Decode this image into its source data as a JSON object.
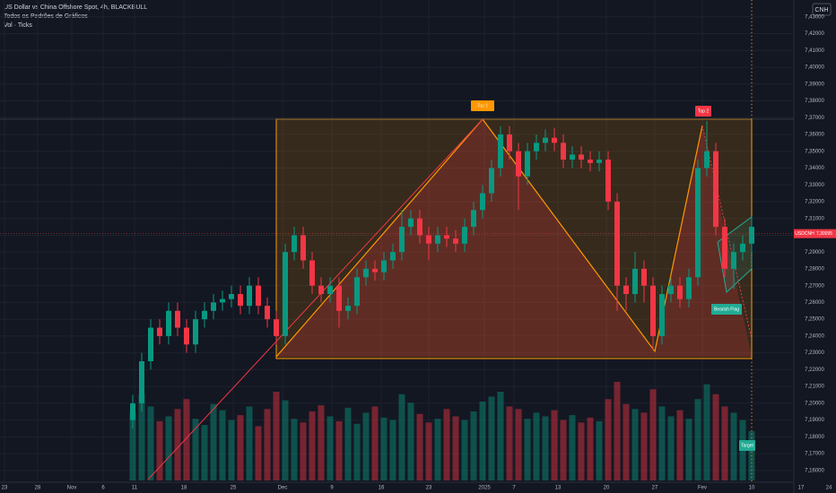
{
  "chart_data": {
    "type": "candlestick",
    "title": "US Dollar vs China Offshore Spot, 4h, BLACKBULL",
    "subtitle": "Todos os Padrões de Gráficos",
    "volume_label": "Vol · Ticks",
    "currency": "CNH",
    "symbol": "USDCNH",
    "last_price": {
      "value": 7.30095,
      "label": "7,30095"
    },
    "annotations": [
      "Top 1",
      "Top 2",
      "Bearish Flag",
      "Target"
    ],
    "ylim": [
      7.153,
      7.44
    ],
    "yticks": [
      {
        "value": 7.16,
        "label": "7,16000"
      },
      {
        "value": 7.17,
        "label": "7,17000"
      },
      {
        "value": 7.18,
        "label": "7,18000"
      },
      {
        "value": 7.19,
        "label": "7,19000"
      },
      {
        "value": 7.2,
        "label": "7,20000"
      },
      {
        "value": 7.21,
        "label": "7,21000"
      },
      {
        "value": 7.22,
        "label": "7,22000"
      },
      {
        "value": 7.23,
        "label": "7,23000"
      },
      {
        "value": 7.24,
        "label": "7,24000"
      },
      {
        "value": 7.25,
        "label": "7,25000"
      },
      {
        "value": 7.26,
        "label": "7,26000"
      },
      {
        "value": 7.27,
        "label": "7,27000"
      },
      {
        "value": 7.28,
        "label": "7,28000"
      },
      {
        "value": 7.29,
        "label": "7,29000"
      },
      {
        "value": 7.3,
        "label": "7,30000"
      },
      {
        "value": 7.31,
        "label": "7,31000"
      },
      {
        "value": 7.32,
        "label": "7,32000"
      },
      {
        "value": 7.33,
        "label": "7,33000"
      },
      {
        "value": 7.34,
        "label": "7,34000"
      },
      {
        "value": 7.35,
        "label": "7,35000"
      },
      {
        "value": 7.36,
        "label": "7,36000"
      },
      {
        "value": 7.37,
        "label": "7,37000"
      },
      {
        "value": 7.38,
        "label": "7,38000"
      },
      {
        "value": 7.39,
        "label": "7,39000"
      },
      {
        "value": 7.4,
        "label": "7,40000"
      },
      {
        "value": 7.41,
        "label": "7,41000"
      },
      {
        "value": 7.42,
        "label": "7,42000"
      },
      {
        "value": 7.43,
        "label": "7,43000"
      }
    ],
    "x_labels": [
      "23",
      "28",
      "Nov",
      "6",
      "11",
      "18",
      "25",
      "Dec",
      "9",
      "16",
      "23",
      "2025",
      "7",
      "13",
      "20",
      "27",
      "Fev",
      "10",
      "17",
      "24"
    ],
    "up_color": "#089981",
    "down_color": "#f23645",
    "grid": true,
    "open": [
      7.19,
      7.2,
      7.225,
      7.245,
      7.24,
      7.255,
      7.245,
      7.235,
      7.25,
      7.255,
      7.26,
      7.262,
      7.265,
      7.258,
      7.27,
      7.258,
      7.25,
      7.24,
      7.29,
      7.3,
      7.285,
      7.27,
      7.265,
      7.27,
      7.255,
      7.258,
      7.275,
      7.28,
      7.278,
      7.285,
      7.29,
      7.305,
      7.31,
      7.3,
      7.295,
      7.3,
      7.298,
      7.295,
      7.305,
      7.315,
      7.325,
      7.34,
      7.36,
      7.35,
      7.335,
      7.35,
      7.355,
      7.358,
      7.355,
      7.345,
      7.348,
      7.345,
      7.343,
      7.345,
      7.32,
      7.27,
      7.265,
      7.28,
      7.27,
      7.24,
      7.265,
      7.27,
      7.262,
      7.275,
      7.34,
      7.35,
      7.305,
      7.28,
      7.29,
      7.295
    ],
    "high": [
      7.205,
      7.23,
      7.25,
      7.25,
      7.26,
      7.26,
      7.25,
      7.255,
      7.26,
      7.265,
      7.267,
      7.27,
      7.27,
      7.275,
      7.275,
      7.263,
      7.255,
      7.295,
      7.305,
      7.305,
      7.29,
      7.275,
      7.275,
      7.275,
      7.263,
      7.28,
      7.285,
      7.285,
      7.29,
      7.295,
      7.315,
      7.315,
      7.315,
      7.305,
      7.305,
      7.305,
      7.303,
      7.31,
      7.32,
      7.33,
      7.345,
      7.365,
      7.365,
      7.355,
      7.355,
      7.36,
      7.363,
      7.364,
      7.36,
      7.353,
      7.353,
      7.35,
      7.35,
      7.35,
      7.325,
      7.275,
      7.29,
      7.285,
      7.275,
      7.27,
      7.275,
      7.275,
      7.28,
      7.345,
      7.368,
      7.355,
      7.31,
      7.295,
      7.3,
      7.31
    ],
    "low": [
      7.185,
      7.195,
      7.22,
      7.235,
      7.235,
      7.24,
      7.23,
      7.23,
      7.245,
      7.25,
      7.255,
      7.257,
      7.253,
      7.253,
      7.253,
      7.245,
      7.235,
      7.235,
      7.285,
      7.28,
      7.265,
      7.26,
      7.26,
      7.245,
      7.25,
      7.253,
      7.27,
      7.273,
      7.273,
      7.28,
      7.285,
      7.3,
      7.295,
      7.285,
      7.29,
      7.293,
      7.29,
      7.29,
      7.3,
      7.31,
      7.32,
      7.335,
      7.345,
      7.315,
      7.33,
      7.345,
      7.35,
      7.35,
      7.34,
      7.34,
      7.34,
      7.338,
      7.338,
      7.315,
      7.255,
      7.255,
      7.26,
      7.26,
      7.232,
      7.235,
      7.26,
      7.257,
      7.257,
      7.27,
      7.335,
      7.3,
      7.275,
      7.268,
      7.285,
      7.29
    ],
    "close": [
      7.2,
      7.225,
      7.245,
      7.24,
      7.255,
      7.245,
      7.235,
      7.25,
      7.255,
      7.26,
      7.262,
      7.265,
      7.258,
      7.27,
      7.258,
      7.25,
      7.24,
      7.29,
      7.3,
      7.285,
      7.27,
      7.265,
      7.27,
      7.255,
      7.258,
      7.275,
      7.28,
      7.278,
      7.285,
      7.29,
      7.305,
      7.31,
      7.3,
      7.295,
      7.3,
      7.298,
      7.295,
      7.305,
      7.315,
      7.325,
      7.34,
      7.36,
      7.35,
      7.335,
      7.35,
      7.355,
      7.358,
      7.355,
      7.345,
      7.348,
      7.345,
      7.343,
      7.345,
      7.32,
      7.27,
      7.265,
      7.28,
      7.27,
      7.24,
      7.265,
      7.27,
      7.262,
      7.275,
      7.34,
      7.35,
      7.305,
      7.28,
      7.29,
      7.295,
      7.305
    ],
    "volume": [
      55,
      70,
      60,
      48,
      52,
      58,
      66,
      50,
      45,
      62,
      57,
      49,
      53,
      60,
      44,
      58,
      72,
      65,
      50,
      47,
      56,
      61,
      52,
      48,
      59,
      46,
      55,
      60,
      51,
      49,
      70,
      63,
      54,
      47,
      50,
      58,
      52,
      49,
      56,
      64,
      68,
      72,
      60,
      58,
      50,
      55,
      52,
      57,
      49,
      53,
      47,
      51,
      48,
      66,
      80,
      62,
      58,
      55,
      74,
      60,
      52,
      57,
      50,
      66,
      78,
      70,
      60,
      55,
      49,
      40
    ]
  }
}
